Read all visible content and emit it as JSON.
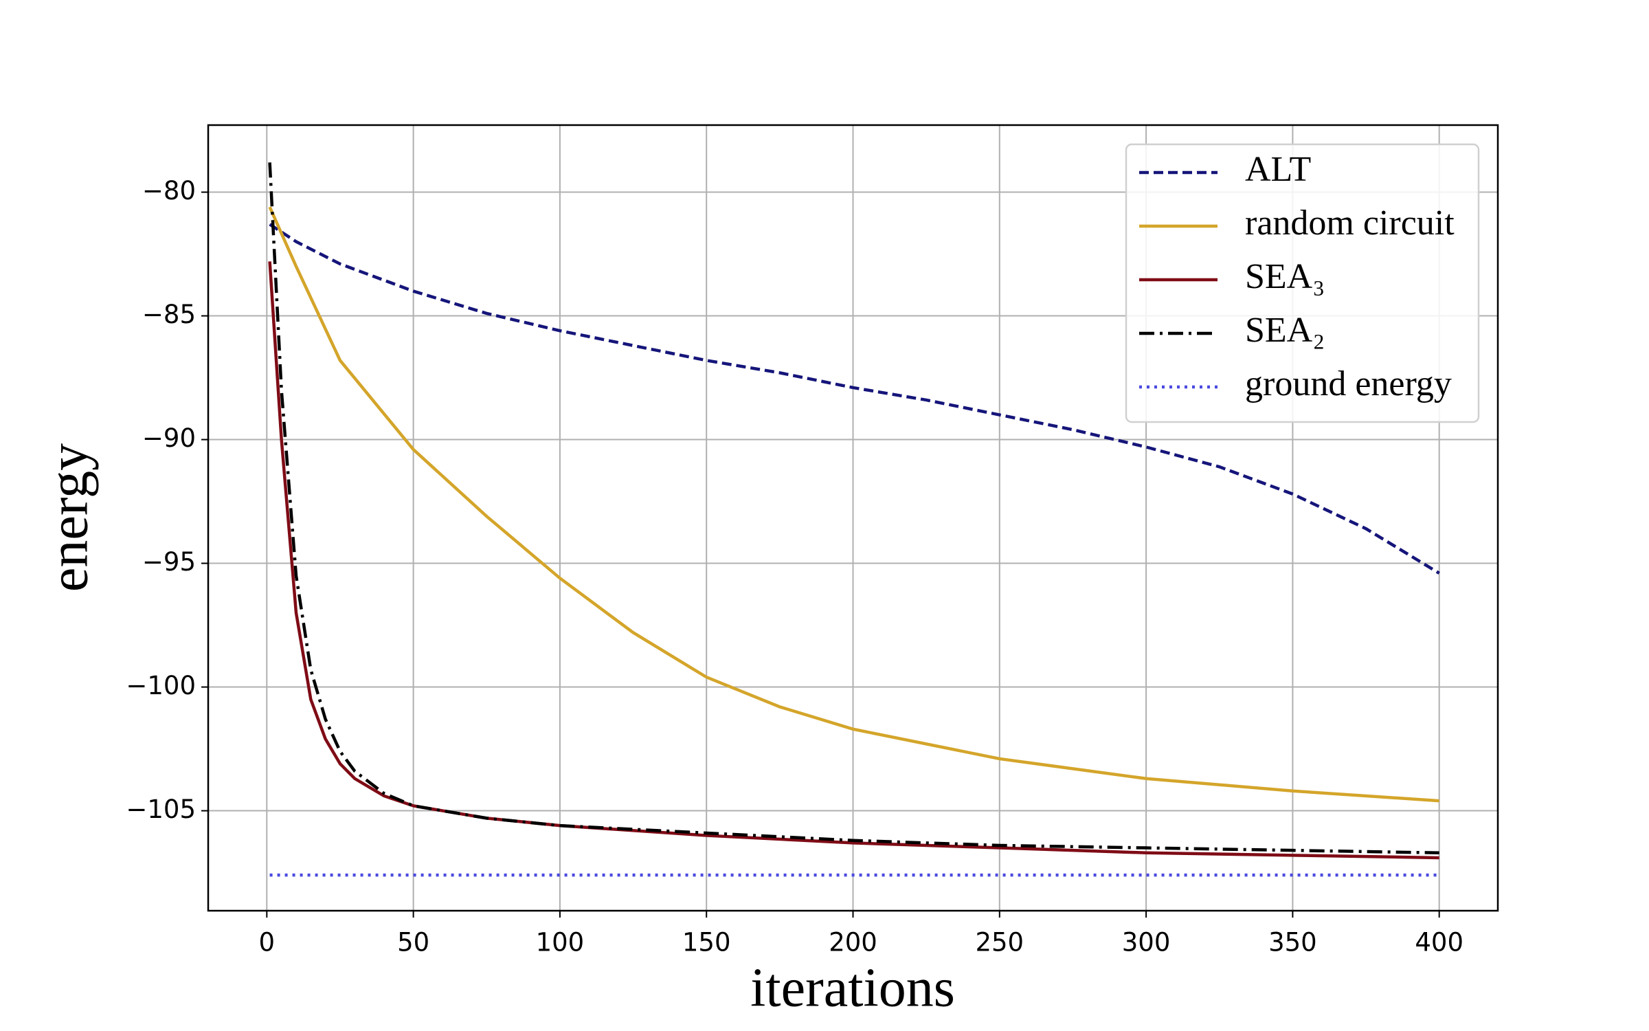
{
  "chart_data": {
    "type": "line",
    "xlabel": "iterations",
    "ylabel": "energy",
    "xlim": [
      -20,
      420
    ],
    "ylim": [
      -109.04,
      -77.29
    ],
    "xticks": [
      0,
      50,
      100,
      150,
      200,
      250,
      300,
      350,
      400
    ],
    "yticks": [
      {
        "value": -80,
        "label": "−80"
      },
      {
        "value": -85,
        "label": "−85"
      },
      {
        "value": -90,
        "label": "−90"
      },
      {
        "value": -95,
        "label": "−95"
      },
      {
        "value": -100,
        "label": "−100"
      },
      {
        "value": -105,
        "label": "−105"
      }
    ],
    "grid": true,
    "legend": "upper right",
    "series": [
      {
        "name": "ALT",
        "color": "#15157a",
        "style": "dashed",
        "x": [
          1,
          10,
          25,
          50,
          75,
          100,
          125,
          150,
          175,
          200,
          225,
          250,
          275,
          300,
          325,
          350,
          375,
          400
        ],
        "values": [
          -81.3,
          -82.0,
          -82.9,
          -84.0,
          -84.9,
          -85.6,
          -86.2,
          -86.8,
          -87.3,
          -87.9,
          -88.4,
          -89.0,
          -89.6,
          -90.3,
          -91.1,
          -92.2,
          -93.6,
          -95.4
        ]
      },
      {
        "name": "random circuit",
        "color": "#d4a52a",
        "style": "solid",
        "x": [
          1,
          10,
          25,
          50,
          75,
          100,
          125,
          150,
          175,
          200,
          250,
          300,
          350,
          400
        ],
        "values": [
          -80.6,
          -83.0,
          -86.8,
          -90.4,
          -93.1,
          -95.6,
          -97.8,
          -99.6,
          -100.8,
          -101.7,
          -102.9,
          -103.7,
          -104.2,
          -104.6
        ]
      },
      {
        "name": "SEA₃",
        "color": "#7f0c16",
        "style": "solid",
        "x": [
          1,
          5,
          10,
          15,
          20,
          25,
          30,
          40,
          50,
          75,
          100,
          150,
          200,
          250,
          300,
          350,
          400
        ],
        "values": [
          -82.8,
          -90,
          -97,
          -100.5,
          -102.1,
          -103.1,
          -103.7,
          -104.4,
          -104.8,
          -105.3,
          -105.6,
          -106.0,
          -106.3,
          -106.5,
          -106.7,
          -106.8,
          -106.9
        ]
      },
      {
        "name": "SEA₂",
        "color": "#000000",
        "style": "dashdot",
        "x": [
          1,
          5,
          10,
          15,
          20,
          25,
          30,
          40,
          50,
          75,
          100,
          150,
          200,
          250,
          300,
          350,
          400
        ],
        "values": [
          -78.8,
          -88,
          -95.5,
          -99.3,
          -101.3,
          -102.6,
          -103.4,
          -104.3,
          -104.8,
          -105.3,
          -105.6,
          -105.9,
          -106.2,
          -106.4,
          -106.5,
          -106.6,
          -106.7
        ]
      },
      {
        "name": "ground energy",
        "color": "#4a4ae0",
        "style": "dotted",
        "x": [
          1,
          400
        ],
        "values": [
          -107.6,
          -107.6
        ]
      }
    ]
  }
}
